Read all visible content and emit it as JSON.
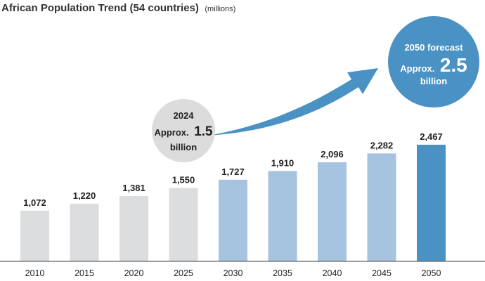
{
  "chart_data": {
    "type": "bar",
    "title": "African Population Trend (54 countries)",
    "unit_label": "(millions)",
    "xlabel": "",
    "ylabel": "",
    "categories": [
      "2010",
      "2015",
      "2020",
      "2025",
      "2030",
      "2035",
      "2040",
      "2045",
      "2050"
    ],
    "values": [
      1072,
      1220,
      1381,
      1550,
      1727,
      1910,
      2096,
      2282,
      2467
    ],
    "value_labels": [
      "1,072",
      "1,220",
      "1,381",
      "1,550",
      "1,727",
      "1,910",
      "2,096",
      "2,282",
      "2,467"
    ],
    "ylim": [
      0,
      2500
    ],
    "grid": false,
    "bar_groups": [
      "actual",
      "actual",
      "actual",
      "actual",
      "forecast",
      "forecast",
      "forecast",
      "forecast",
      "highlight"
    ],
    "colors": {
      "actual": "#dcdddf",
      "forecast": "#a6c3df",
      "highlight": "#4a92c3",
      "axis": "#666666",
      "arrow": "#4a92c3",
      "bubble_2024": "#dcdcdc",
      "bubble_2050": "#4a92c3"
    },
    "annotations": {
      "current": {
        "year": "2024",
        "approx_prefix": "Approx.",
        "approx_value": "1.5",
        "unit": "billion"
      },
      "forecast": {
        "heading": "2050 forecast",
        "approx_prefix": "Approx.",
        "approx_value": "2.5",
        "unit": "billion"
      }
    }
  }
}
